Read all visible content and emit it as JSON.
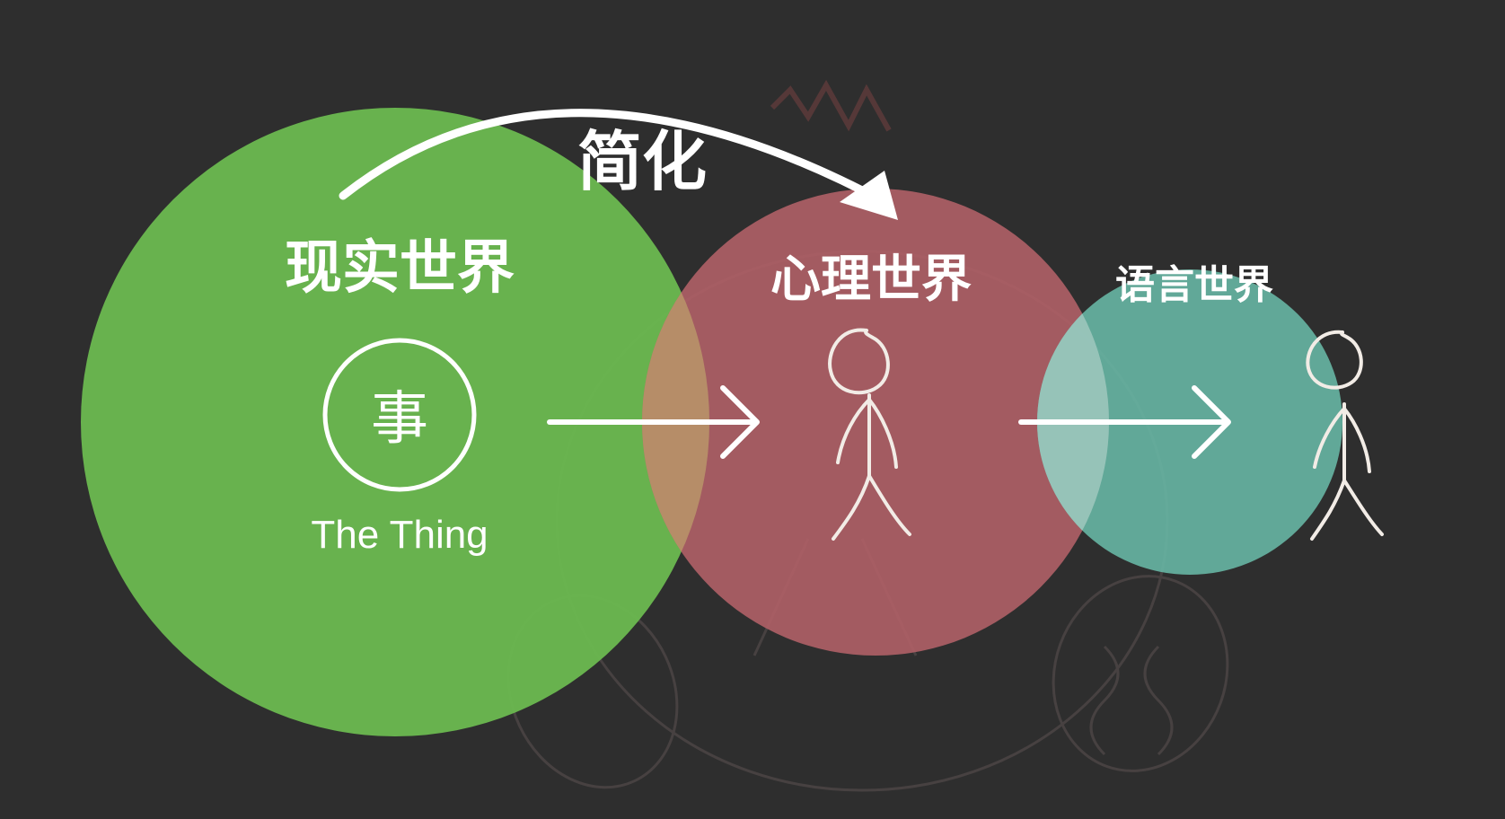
{
  "diagram": {
    "arc_label": "简化",
    "real_world": {
      "title": "现实世界",
      "symbol": "事",
      "caption": "The Thing",
      "color": "#6ab74f"
    },
    "mental_world": {
      "title": "心理世界",
      "color": "#b06167"
    },
    "language_world": {
      "title": "语言世界",
      "color": "#67b6a4"
    },
    "background_color": "#2e2e2e",
    "line_color": "#ffffff"
  }
}
